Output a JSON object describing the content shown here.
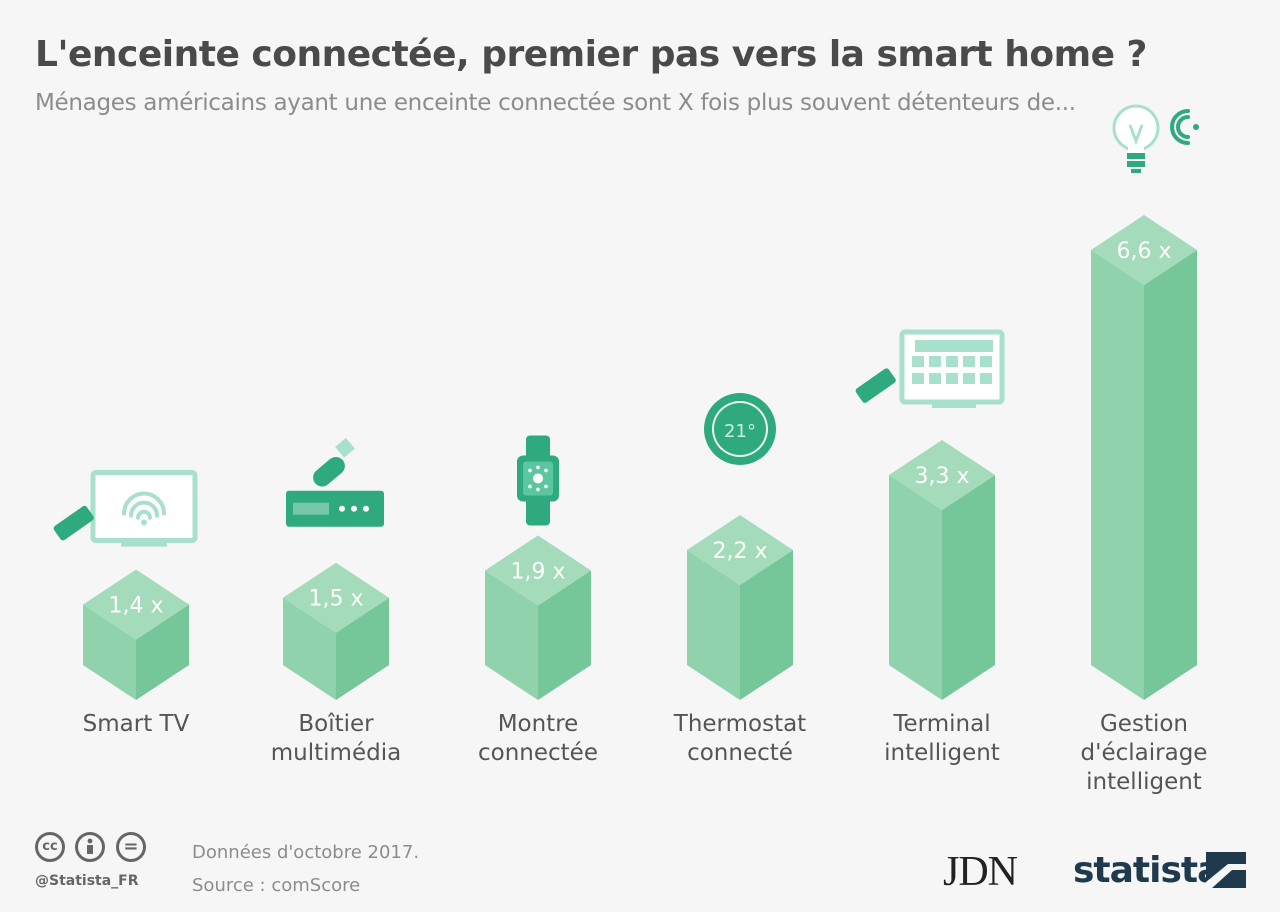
{
  "title": "L'enceinte connectée, premier pas vers la smart home ?",
  "subtitle": "Ménages américains ayant une enceinte connectée sont X fois plus souvent détenteurs de...",
  "chart_data": {
    "type": "bar",
    "categories": [
      [
        "Smart TV"
      ],
      [
        "Boîtier",
        "multimédia"
      ],
      [
        "Montre",
        "connectée"
      ],
      [
        "Thermostat",
        "connecté"
      ],
      [
        "Terminal",
        "intelligent"
      ],
      [
        "Gestion",
        "d'éclairage",
        "intelligent"
      ]
    ],
    "values": [
      1.4,
      1.5,
      1.9,
      2.2,
      3.3,
      6.6
    ],
    "value_labels": [
      "1,4 x",
      "1,5 x",
      "1,9 x",
      "2,2 x",
      "3,3 x",
      "6,6 x"
    ],
    "icons": [
      "smart-tv-icon",
      "media-box-icon",
      "smartwatch-icon",
      "thermostat-icon",
      "smart-terminal-icon",
      "smart-bulb-icon"
    ],
    "thermostat_reading": "21°",
    "colors": {
      "face": "#8fd2ab",
      "side": "#75c79a",
      "top": "#a3dbbb",
      "icon": "#a8e0cc",
      "icon_dark": "#2eaa7e"
    }
  },
  "footer": {
    "handle": "@Statista_FR",
    "date_note": "Données d'octobre 2017.",
    "source": "Source : comScore",
    "license_icons": [
      "creative-commons-icon",
      "attribution-icon",
      "no-derivatives-icon"
    ],
    "license_glyphs": [
      "cc",
      "",
      "="
    ]
  },
  "brands": {
    "jdn": "JDN",
    "statista": "statista"
  }
}
